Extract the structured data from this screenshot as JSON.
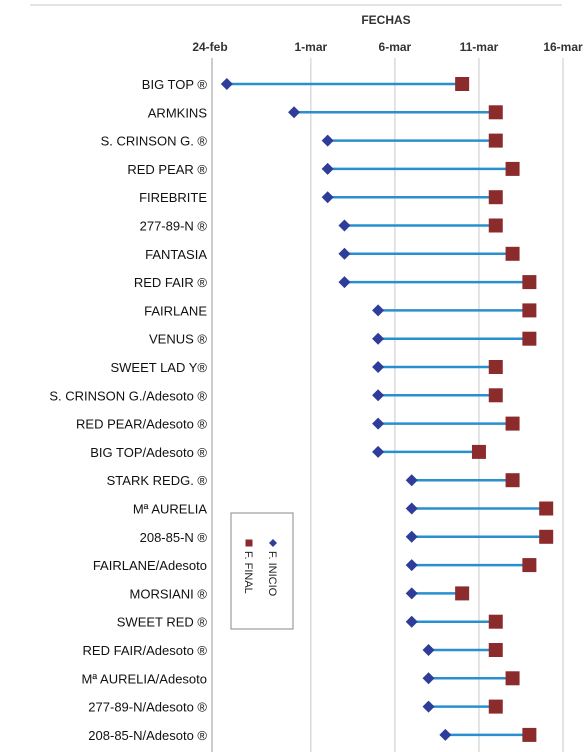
{
  "chart_data": {
    "type": "dumbbell",
    "x_axis_title": "FECHAS",
    "x_ticks": [
      "24-feb",
      "1-mar",
      "6-mar",
      "11-mar",
      "16-mar"
    ],
    "categories": [
      "BIG TOP ®",
      "ARMKINS",
      "S. CRINSON G. ®",
      "RED PEAR ®",
      "FIREBRITE",
      "277-89-N ®",
      "FANTASIA",
      "RED FAIR ®",
      "FAIRLANE",
      "VENUS ®",
      "SWEET LAD  Y®",
      "S. CRINSON G./Adesoto ®",
      "RED PEAR/Adesoto ®",
      "BIG TOP/Adesoto ®",
      "STARK REDG. ®",
      "Mª AURELIA",
      "208-85-N ®",
      "FAIRLANE/Adesoto",
      "MORSIANI ®",
      "SWEET RED ®",
      "RED FAIR/Adesoto ®",
      "Mª AURELIA/Adesoto",
      "277-89-N/Adesoto ®",
      "208-85-N/Adesoto ®"
    ],
    "series": [
      {
        "name": "F. INICIO",
        "color": "#2e3d99",
        "marker": "diamond",
        "values": [
          "2024-02-25",
          "2024-02-29",
          "2024-03-02",
          "2024-03-02",
          "2024-03-02",
          "2024-03-03",
          "2024-03-03",
          "2024-03-03",
          "2024-03-05",
          "2024-03-05",
          "2024-03-05",
          "2024-03-05",
          "2024-03-05",
          "2024-03-05",
          "2024-03-07",
          "2024-03-07",
          "2024-03-07",
          "2024-03-07",
          "2024-03-07",
          "2024-03-07",
          "2024-03-08",
          "2024-03-08",
          "2024-03-08",
          "2024-03-09"
        ]
      },
      {
        "name": "F. FINAL",
        "color": "#8b2b2b",
        "marker": "square",
        "values": [
          "2024-03-10",
          "2024-03-12",
          "2024-03-12",
          "2024-03-13",
          "2024-03-12",
          "2024-03-12",
          "2024-03-13",
          "2024-03-14",
          "2024-03-14",
          "2024-03-14",
          "2024-03-12",
          "2024-03-12",
          "2024-03-13",
          "2024-03-11",
          "2024-03-13",
          "2024-03-15",
          "2024-03-15",
          "2024-03-14",
          "2024-03-10",
          "2024-03-12",
          "2024-03-12",
          "2024-03-13",
          "2024-03-12",
          "2024-03-14"
        ]
      }
    ],
    "connector_color": "#2a8fce",
    "legend": [
      "F. INICIO",
      "F. FINAL"
    ],
    "legend_orientation": "rotated-vertical",
    "grid": true
  }
}
